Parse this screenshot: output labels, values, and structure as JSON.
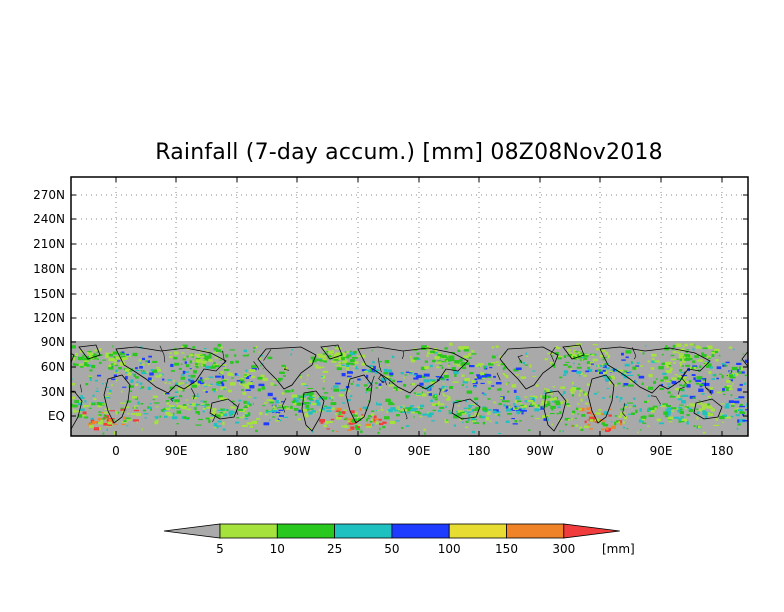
{
  "title": "Rainfall (7-day accum.) [mm] 08Z08Nov2018",
  "y_ticks": [
    "270N",
    "240N",
    "210N",
    "180N",
    "150N",
    "120N",
    "90N",
    "60N",
    "30N",
    "EQ"
  ],
  "x_ticks": [
    "0",
    "90E",
    "180",
    "90W",
    "0",
    "90E",
    "180",
    "90W",
    "0",
    "90E",
    "180"
  ],
  "colorbar": {
    "unit": "[mm]",
    "labels": [
      "5",
      "10",
      "25",
      "50",
      "100",
      "150",
      "300"
    ],
    "colors": [
      "#aaaaaa",
      "#a6e23c",
      "#28c81e",
      "#1ec0c0",
      "#1e3cff",
      "#e6dc32",
      "#f08228",
      "#f03c3c"
    ]
  },
  "map_colors": {
    "nodata_gray": "#a9a9a9",
    "land": "#a9a9a9",
    "coast": "#000000"
  }
}
